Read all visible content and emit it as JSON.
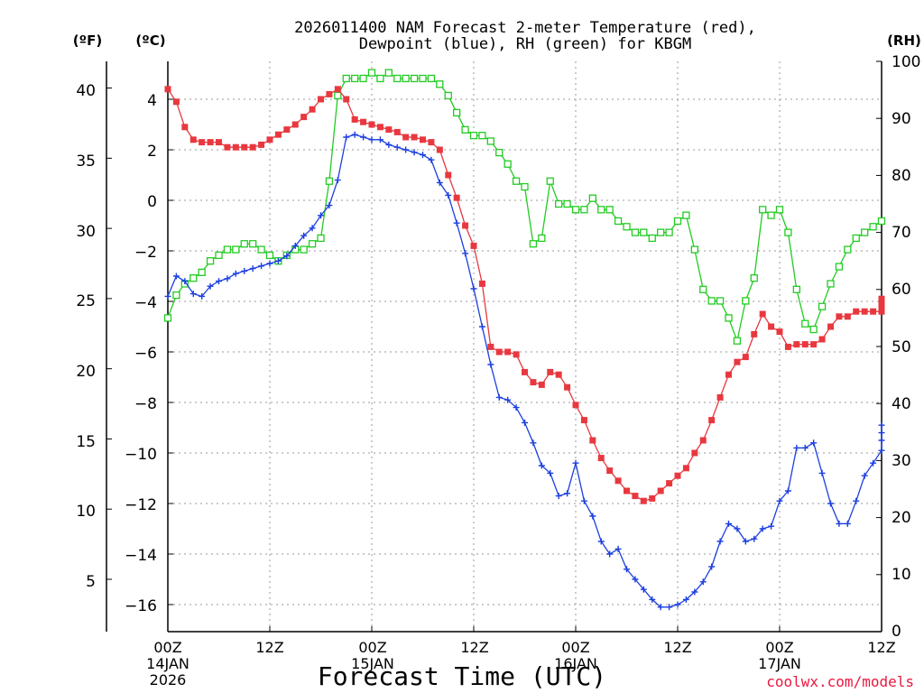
{
  "chart_data": {
    "type": "line",
    "title_line1": "2026011400 NAM Forecast 2-meter Temperature (red),",
    "title_line2": "Dewpoint (blue), RH (green) for KBGM",
    "left_f_unit": "(ºF)",
    "left_c_unit": "(ºC)",
    "right_unit": "(RH)",
    "xlabel": "Forecast Time (UTC)",
    "credit": "coolwx.com/models",
    "grid": true,
    "xlim": [
      0,
      84
    ],
    "ylim_c": [
      -17,
      5.5
    ],
    "ylim_rh": [
      0,
      100
    ],
    "f_ticks": [
      "40",
      "35",
      "30",
      "25",
      "20",
      "15",
      "10",
      "5"
    ],
    "c_ticks": [
      "4",
      "2",
      "0",
      "−2",
      "−4",
      "−6",
      "−8",
      "−10",
      "−12",
      "−14",
      "−16"
    ],
    "rh_ticks": [
      "100",
      "90",
      "80",
      "70",
      "60",
      "50",
      "40",
      "30",
      "20",
      "10",
      "0"
    ],
    "x_ticks": [
      {
        "hour": 0,
        "line1": "00Z",
        "line2": "14JAN",
        "line3": "2026"
      },
      {
        "hour": 12,
        "line1": "12Z",
        "line2": "",
        "line3": ""
      },
      {
        "hour": 24,
        "line1": "00Z",
        "line2": "15JAN",
        "line3": ""
      },
      {
        "hour": 36,
        "line1": "12Z",
        "line2": "",
        "line3": ""
      },
      {
        "hour": 48,
        "line1": "00Z",
        "line2": "16JAN",
        "line3": ""
      },
      {
        "hour": 60,
        "line1": "12Z",
        "line2": "",
        "line3": ""
      },
      {
        "hour": 72,
        "line1": "00Z",
        "line2": "17JAN",
        "line3": ""
      },
      {
        "hour": 84,
        "line1": "12Z",
        "line2": "",
        "line3": ""
      }
    ],
    "series": [
      {
        "color": "#e8383f",
        "marker": "filled-square",
        "axis": "celsius",
        "points": [
          [
            0,
            4.4
          ],
          [
            1,
            3.9
          ],
          [
            2,
            2.9
          ],
          [
            3,
            2.4
          ],
          [
            4,
            2.3
          ],
          [
            5,
            2.3
          ],
          [
            6,
            2.3
          ],
          [
            7,
            2.1
          ],
          [
            8,
            2.1
          ],
          [
            9,
            2.1
          ],
          [
            10,
            2.1
          ],
          [
            11,
            2.2
          ],
          [
            12,
            2.4
          ],
          [
            13,
            2.6
          ],
          [
            14,
            2.8
          ],
          [
            15,
            3.0
          ],
          [
            16,
            3.3
          ],
          [
            17,
            3.6
          ],
          [
            18,
            4.0
          ],
          [
            19,
            4.2
          ],
          [
            20,
            4.4
          ],
          [
            21,
            4.0
          ],
          [
            22,
            3.2
          ],
          [
            23,
            3.1
          ],
          [
            24,
            3.0
          ],
          [
            25,
            2.9
          ],
          [
            26,
            2.8
          ],
          [
            27,
            2.7
          ],
          [
            28,
            2.5
          ],
          [
            29,
            2.5
          ],
          [
            30,
            2.4
          ],
          [
            31,
            2.3
          ],
          [
            32,
            2.0
          ],
          [
            33,
            1.0
          ],
          [
            34,
            0.1
          ],
          [
            35,
            -1.0
          ],
          [
            36,
            -1.8
          ],
          [
            37,
            -3.3
          ],
          [
            38,
            -5.8
          ],
          [
            39,
            -6.0
          ],
          [
            40,
            -6.0
          ],
          [
            41,
            -6.1
          ],
          [
            42,
            -6.8
          ],
          [
            43,
            -7.2
          ],
          [
            44,
            -7.3
          ],
          [
            45,
            -6.8
          ],
          [
            46,
            -6.9
          ],
          [
            47,
            -7.4
          ],
          [
            48,
            -8.1
          ],
          [
            49,
            -8.7
          ],
          [
            50,
            -9.5
          ],
          [
            51,
            -10.2
          ],
          [
            52,
            -10.7
          ],
          [
            53,
            -11.1
          ],
          [
            54,
            -11.5
          ],
          [
            55,
            -11.7
          ],
          [
            56,
            -11.9
          ],
          [
            57,
            -11.8
          ],
          [
            58,
            -11.5
          ],
          [
            59,
            -11.2
          ],
          [
            60,
            -10.9
          ],
          [
            61,
            -10.6
          ],
          [
            62,
            -10.0
          ],
          [
            63,
            -9.5
          ],
          [
            64,
            -8.7
          ],
          [
            65,
            -7.8
          ],
          [
            66,
            -6.9
          ],
          [
            67,
            -6.4
          ],
          [
            68,
            -6.2
          ],
          [
            69,
            -5.3
          ],
          [
            70,
            -4.5
          ],
          [
            71,
            -5.0
          ],
          [
            72,
            -5.2
          ],
          [
            73,
            -5.8
          ],
          [
            74,
            -5.7
          ],
          [
            75,
            -5.7
          ],
          [
            76,
            -5.7
          ],
          [
            77,
            -5.5
          ],
          [
            78,
            -5.0
          ],
          [
            79,
            -4.6
          ],
          [
            80,
            -4.6
          ],
          [
            81,
            -4.4
          ],
          [
            82,
            -4.4
          ],
          [
            83,
            -4.4
          ],
          [
            84,
            -4.4
          ],
          [
            85,
            -4.1
          ],
          [
            86,
            -4.2
          ],
          [
            87,
            -3.9
          ]
        ]
      },
      {
        "color": "#1c3fe0",
        "marker": "plus",
        "axis": "celsius",
        "points": [
          [
            0,
            -3.8
          ],
          [
            1,
            -3.0
          ],
          [
            2,
            -3.2
          ],
          [
            3,
            -3.7
          ],
          [
            4,
            -3.8
          ],
          [
            5,
            -3.4
          ],
          [
            6,
            -3.2
          ],
          [
            7,
            -3.1
          ],
          [
            8,
            -2.9
          ],
          [
            9,
            -2.8
          ],
          [
            10,
            -2.7
          ],
          [
            11,
            -2.6
          ],
          [
            12,
            -2.5
          ],
          [
            13,
            -2.4
          ],
          [
            14,
            -2.2
          ],
          [
            15,
            -1.8
          ],
          [
            16,
            -1.4
          ],
          [
            17,
            -1.1
          ],
          [
            18,
            -0.6
          ],
          [
            19,
            -0.2
          ],
          [
            20,
            0.8
          ],
          [
            21,
            2.5
          ],
          [
            22,
            2.6
          ],
          [
            23,
            2.5
          ],
          [
            24,
            2.4
          ],
          [
            25,
            2.4
          ],
          [
            26,
            2.2
          ],
          [
            27,
            2.1
          ],
          [
            28,
            2.0
          ],
          [
            29,
            1.9
          ],
          [
            30,
            1.8
          ],
          [
            31,
            1.6
          ],
          [
            32,
            0.7
          ],
          [
            33,
            0.2
          ],
          [
            34,
            -0.9
          ],
          [
            35,
            -2.1
          ],
          [
            36,
            -3.5
          ],
          [
            37,
            -5.0
          ],
          [
            38,
            -6.5
          ],
          [
            39,
            -7.8
          ],
          [
            40,
            -7.9
          ],
          [
            41,
            -8.2
          ],
          [
            42,
            -8.8
          ],
          [
            43,
            -9.6
          ],
          [
            44,
            -10.5
          ],
          [
            45,
            -10.8
          ],
          [
            46,
            -11.7
          ],
          [
            47,
            -11.6
          ],
          [
            48,
            -10.4
          ],
          [
            49,
            -11.9
          ],
          [
            50,
            -12.5
          ],
          [
            51,
            -13.5
          ],
          [
            52,
            -14.0
          ],
          [
            53,
            -13.8
          ],
          [
            54,
            -14.6
          ],
          [
            55,
            -15.0
          ],
          [
            56,
            -15.4
          ],
          [
            57,
            -15.8
          ],
          [
            58,
            -16.1
          ],
          [
            59,
            -16.1
          ],
          [
            60,
            -16.0
          ],
          [
            61,
            -15.8
          ],
          [
            62,
            -15.5
          ],
          [
            63,
            -15.1
          ],
          [
            64,
            -14.5
          ],
          [
            65,
            -13.5
          ],
          [
            66,
            -12.8
          ],
          [
            67,
            -13.0
          ],
          [
            68,
            -13.5
          ],
          [
            69,
            -13.4
          ],
          [
            70,
            -13.0
          ],
          [
            71,
            -12.9
          ],
          [
            72,
            -11.9
          ],
          [
            73,
            -11.5
          ],
          [
            74,
            -9.8
          ],
          [
            75,
            -9.8
          ],
          [
            76,
            -9.6
          ],
          [
            77,
            -10.8
          ],
          [
            78,
            -12.0
          ],
          [
            79,
            -12.8
          ],
          [
            80,
            -12.8
          ],
          [
            81,
            -11.9
          ],
          [
            82,
            -10.9
          ],
          [
            83,
            -10.4
          ],
          [
            84,
            -9.9
          ],
          [
            85,
            -9.5
          ],
          [
            86,
            -9.2
          ],
          [
            87,
            -8.9
          ]
        ]
      },
      {
        "color": "#22cc22",
        "marker": "open-square",
        "axis": "rh",
        "points": [
          [
            0,
            55
          ],
          [
            1,
            59
          ],
          [
            2,
            61
          ],
          [
            3,
            62
          ],
          [
            4,
            63
          ],
          [
            5,
            65
          ],
          [
            6,
            66
          ],
          [
            7,
            67
          ],
          [
            8,
            67
          ],
          [
            9,
            68
          ],
          [
            10,
            68
          ],
          [
            11,
            67
          ],
          [
            12,
            66
          ],
          [
            13,
            65
          ],
          [
            14,
            66
          ],
          [
            15,
            67
          ],
          [
            16,
            67
          ],
          [
            17,
            68
          ],
          [
            18,
            69
          ],
          [
            19,
            79
          ],
          [
            20,
            94
          ],
          [
            21,
            97
          ],
          [
            22,
            97
          ],
          [
            23,
            97
          ],
          [
            24,
            98
          ],
          [
            25,
            97
          ],
          [
            26,
            98
          ],
          [
            27,
            97
          ],
          [
            28,
            97
          ],
          [
            29,
            97
          ],
          [
            30,
            97
          ],
          [
            31,
            97
          ],
          [
            32,
            96
          ],
          [
            33,
            94
          ],
          [
            34,
            91
          ],
          [
            35,
            88
          ],
          [
            36,
            87
          ],
          [
            37,
            87
          ],
          [
            38,
            86
          ],
          [
            39,
            84
          ],
          [
            40,
            82
          ],
          [
            41,
            79
          ],
          [
            42,
            78
          ],
          [
            43,
            68
          ],
          [
            44,
            69
          ],
          [
            45,
            79
          ],
          [
            46,
            75
          ],
          [
            47,
            75
          ],
          [
            48,
            74
          ],
          [
            49,
            74
          ],
          [
            50,
            76
          ],
          [
            51,
            74
          ],
          [
            52,
            74
          ],
          [
            53,
            72
          ],
          [
            54,
            71
          ],
          [
            55,
            70
          ],
          [
            56,
            70
          ],
          [
            57,
            69
          ],
          [
            58,
            70
          ],
          [
            59,
            70
          ],
          [
            60,
            72
          ],
          [
            61,
            73
          ],
          [
            62,
            67
          ],
          [
            63,
            60
          ],
          [
            64,
            58
          ],
          [
            65,
            58
          ],
          [
            66,
            55
          ],
          [
            67,
            51
          ],
          [
            68,
            58
          ],
          [
            69,
            62
          ],
          [
            70,
            74
          ],
          [
            71,
            73
          ],
          [
            72,
            74
          ],
          [
            73,
            70
          ],
          [
            74,
            60
          ],
          [
            75,
            54
          ],
          [
            76,
            53
          ],
          [
            77,
            57
          ],
          [
            78,
            61
          ],
          [
            79,
            64
          ],
          [
            80,
            67
          ],
          [
            81,
            69
          ],
          [
            82,
            70
          ],
          [
            83,
            71
          ],
          [
            84,
            72
          ]
        ]
      }
    ]
  }
}
